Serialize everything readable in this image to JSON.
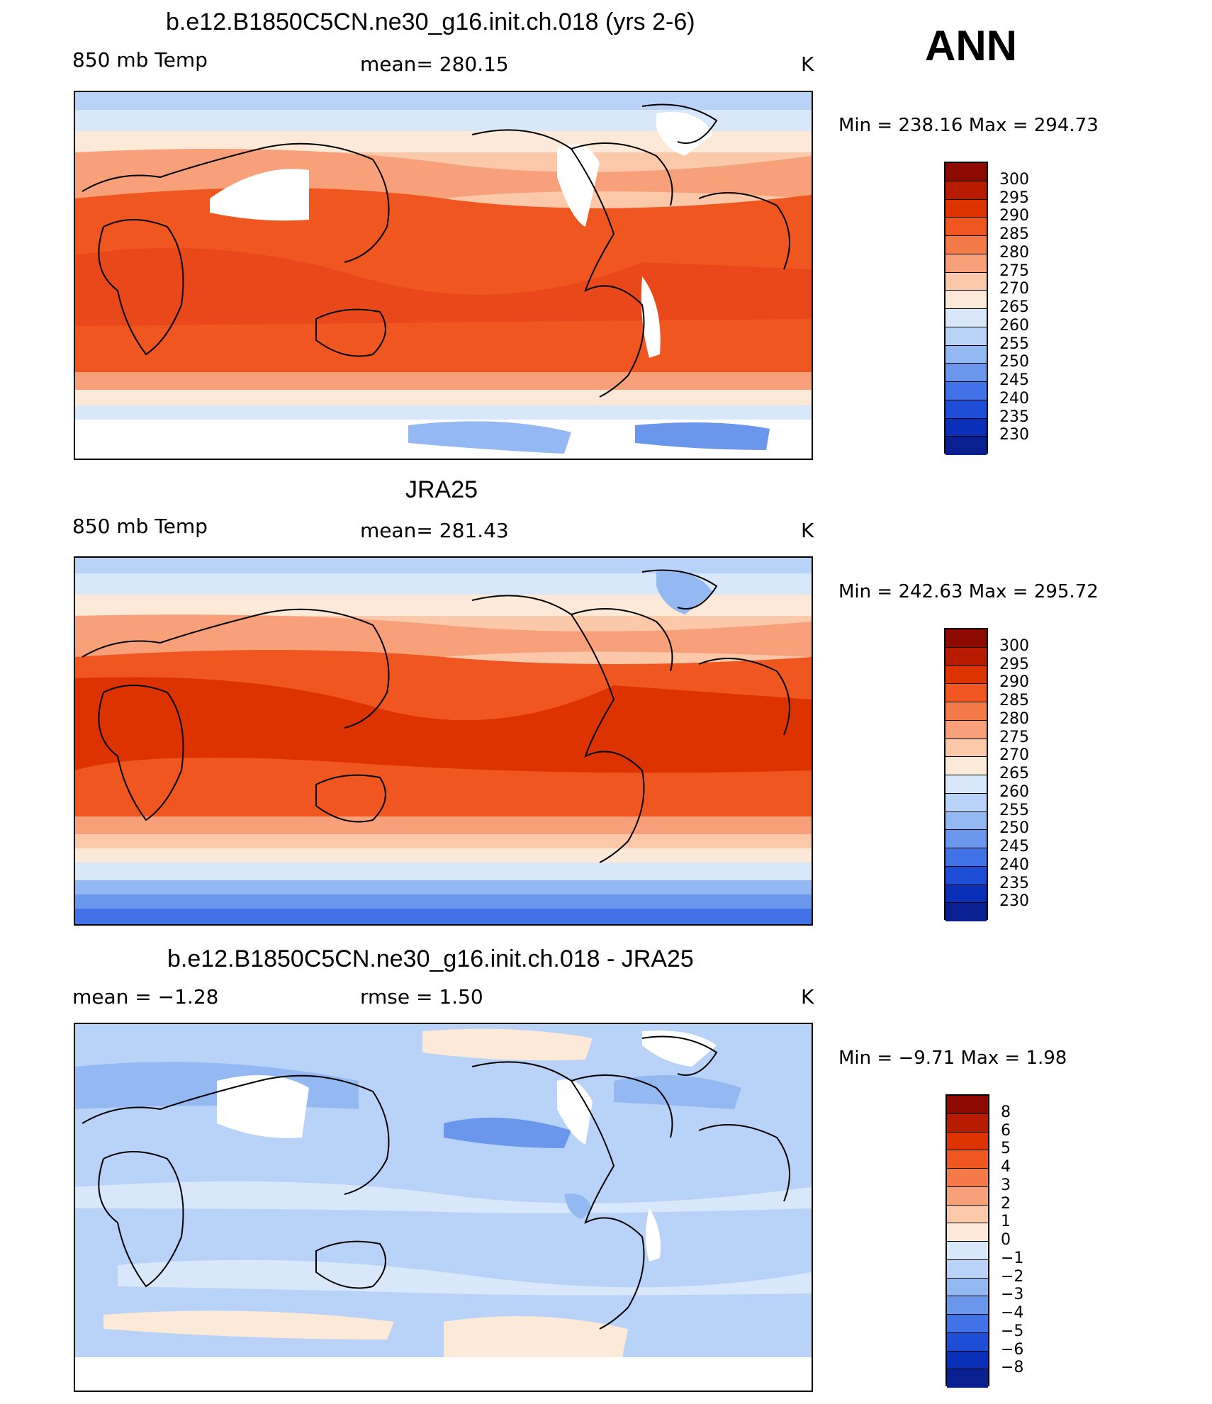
{
  "figure": {
    "season": "ANN"
  },
  "panels": [
    {
      "id": "model",
      "title": "b.e12.B1850C5CN.ne30_g16.init.ch.018 (yrs 2-6)",
      "left_label": "850 mb Temp",
      "center_label": "mean=  280.15",
      "units": "K",
      "min_max": "Min  =  238.16  Max  =  294.73",
      "colorbar_labels": [
        "300",
        "295",
        "290",
        "285",
        "280",
        "275",
        "270",
        "265",
        "260",
        "255",
        "250",
        "245",
        "240",
        "235",
        "230"
      ]
    },
    {
      "id": "obs",
      "title": "JRA25",
      "left_label": "850 mb Temp",
      "center_label": "mean=  281.43",
      "units": "K",
      "min_max": "Min  =  242.63  Max  =  295.72",
      "colorbar_labels": [
        "300",
        "295",
        "290",
        "285",
        "280",
        "275",
        "270",
        "265",
        "260",
        "255",
        "250",
        "245",
        "240",
        "235",
        "230"
      ]
    },
    {
      "id": "diff",
      "title": "b.e12.B1850C5CN.ne30_g16.init.ch.018 - JRA25",
      "left_label": "mean  =    −1.28",
      "center_label": "rmse  =     1.50",
      "units": "K",
      "min_max": "Min  =    −9.71  Max  =     1.98",
      "colorbar_labels": [
        "8",
        "6",
        "5",
        "4",
        "3",
        "2",
        "1",
        "0",
        "−1",
        "−2",
        "−3",
        "−4",
        "−5",
        "−6",
        "−8"
      ]
    }
  ],
  "colors": {
    "temp_scale": [
      "#8c0a00",
      "#b81c00",
      "#dc3300",
      "#f0561f",
      "#f57a4a",
      "#f7a07a",
      "#fbc8aa",
      "#fde9d7",
      "#d8e8fa",
      "#b9d3f8",
      "#94b8f2",
      "#6a97ec",
      "#4272e8",
      "#1e4ed8",
      "#0a2fb8",
      "#0a1f90"
    ],
    "diff_scale": [
      "#8c0a00",
      "#b81c00",
      "#dc3300",
      "#f0561f",
      "#f57a4a",
      "#f7a07a",
      "#fbc8aa",
      "#fde9d7",
      "#d8e8fa",
      "#b9d3f8",
      "#94b8f2",
      "#6a97ec",
      "#4272e8",
      "#1e4ed8",
      "#0a2fb8",
      "#0a1f90"
    ]
  }
}
